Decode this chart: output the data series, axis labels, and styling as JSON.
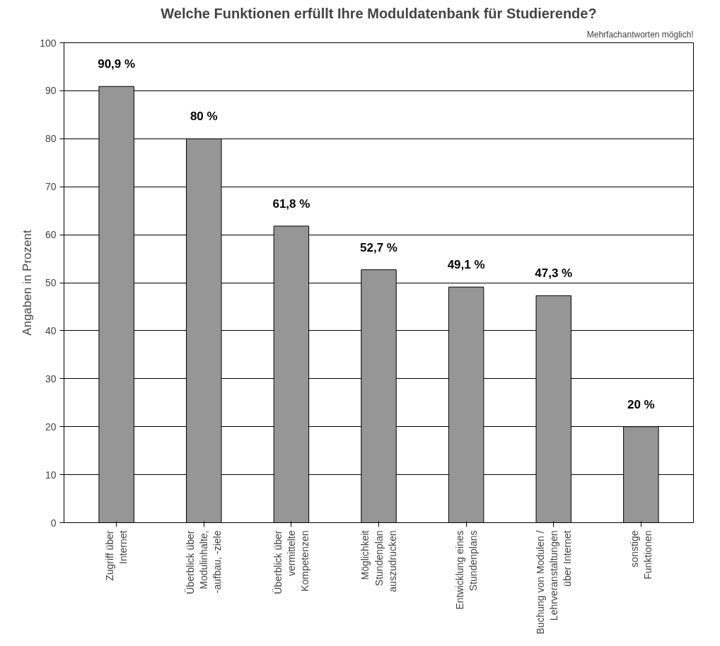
{
  "chart_data": {
    "type": "bar",
    "title": "Welche Funktionen erfüllt Ihre Moduldatenbank für Studierende?",
    "ylabel": "Angaben in Prozent",
    "categories": [
      "Zugriff über\nInternet",
      "Überblick über\nModulinhalte,\n-aufbau, -ziele",
      "Überblick über\nvermittelte\nKompetenzen",
      "Möglichkeit\nStundenplan\nauszudrucken",
      "Entwicklung eines\nStundenplans",
      "Buchung von Modulen /\nLehrveranstaltungen\nüber Internet",
      "sonstige\nFunktionen"
    ],
    "values": [
      90.9,
      80,
      61.8,
      52.7,
      49.1,
      47.3,
      20
    ],
    "value_labels": [
      "90,9 %",
      "80 %",
      "61,8 %",
      "52,7 %",
      "49,1 %",
      "47,3 %",
      "20 %"
    ],
    "color": "#969696",
    "ylim": [
      0,
      100
    ],
    "yticks": [
      0,
      10,
      20,
      30,
      40,
      50,
      60,
      70,
      80,
      90,
      100
    ],
    "grid": "y",
    "annotations": [
      "Mehrfachantworten möglich!"
    ]
  }
}
